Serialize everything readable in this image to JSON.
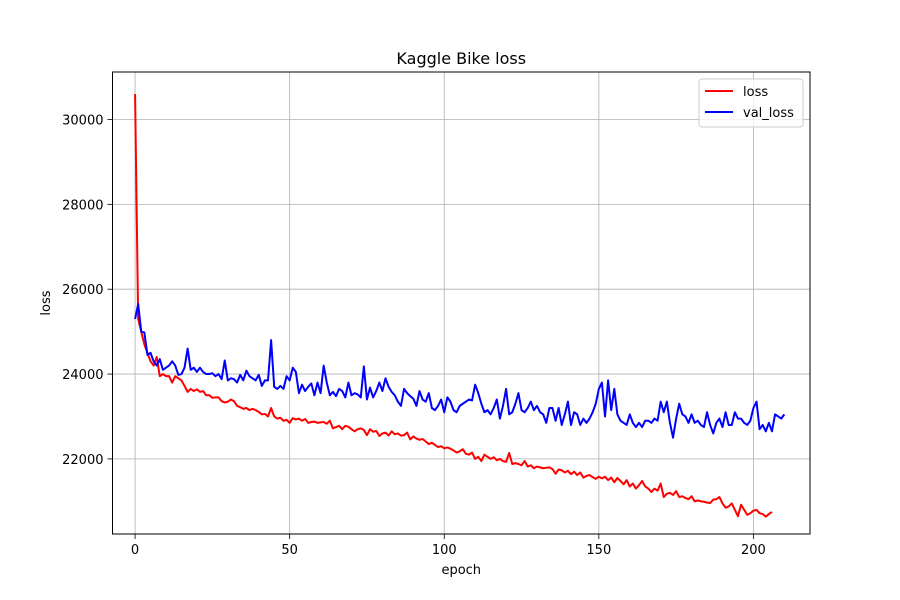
{
  "chart_data": {
    "type": "line",
    "title": "Kaggle Bike loss",
    "xlabel": "epoch",
    "ylabel": "loss",
    "xlim": [
      -7.3,
      218.3
    ],
    "ylim": [
      20230,
      31120
    ],
    "xticks": [
      0,
      50,
      100,
      150,
      200
    ],
    "yticks": [
      22000,
      24000,
      26000,
      28000,
      30000
    ],
    "grid": true,
    "legend": "top-right",
    "series": [
      {
        "name": "loss",
        "color": "#ff0000",
        "values": [
          30600,
          25300,
          25000,
          24700,
          24500,
          24300,
          24200,
          24400,
          23950,
          24000,
          23950,
          23950,
          23800,
          23950,
          23900,
          23850,
          23720,
          23580,
          23650,
          23600,
          23640,
          23580,
          23600,
          23500,
          23500,
          23440,
          23450,
          23450,
          23360,
          23330,
          23350,
          23400,
          23360,
          23250,
          23220,
          23180,
          23200,
          23150,
          23180,
          23150,
          23110,
          23050,
          23060,
          23000,
          23200,
          23000,
          22950,
          22970,
          22900,
          22920,
          22850,
          22960,
          22930,
          22950,
          22900,
          22940,
          22850,
          22870,
          22880,
          22850,
          22860,
          22870,
          22830,
          22900,
          22720,
          22750,
          22780,
          22700,
          22780,
          22760,
          22700,
          22650,
          22700,
          22720,
          22680,
          22560,
          22700,
          22640,
          22660,
          22540,
          22600,
          22620,
          22550,
          22650,
          22580,
          22600,
          22550,
          22560,
          22620,
          22460,
          22530,
          22480,
          22450,
          22470,
          22410,
          22350,
          22380,
          22330,
          22280,
          22300,
          22250,
          22270,
          22240,
          22200,
          22150,
          22180,
          22230,
          22120,
          22100,
          22150,
          22000,
          22050,
          21950,
          22100,
          22050,
          22000,
          22040,
          21970,
          22000,
          21950,
          21930,
          22140,
          21880,
          21900,
          21880,
          21850,
          21950,
          21820,
          21850,
          21780,
          21820,
          21800,
          21780,
          21790,
          21800,
          21760,
          21650,
          21750,
          21730,
          21680,
          21720,
          21640,
          21700,
          21620,
          21680,
          21560,
          21600,
          21620,
          21570,
          21530,
          21580,
          21540,
          21580,
          21500,
          21560,
          21450,
          21550,
          21480,
          21400,
          21500,
          21350,
          21420,
          21300,
          21380,
          21480,
          21350,
          21300,
          21220,
          21300,
          21250,
          21420,
          21100,
          21180,
          21200,
          21150,
          21240,
          21100,
          21120,
          21080,
          21050,
          21120,
          21000,
          21020,
          21000,
          20990,
          20970,
          20960,
          21040,
          21050,
          21100,
          20950,
          20850,
          20880,
          20950,
          20800,
          20650,
          20920,
          20800,
          20680,
          20720,
          20780,
          20800,
          20720,
          20700,
          20640,
          20700,
          20750
        ]
      },
      {
        "name": "val_loss",
        "color": "#0000ff",
        "values": [
          25300,
          25650,
          25000,
          24980,
          24450,
          24500,
          24300,
          24200,
          24350,
          24100,
          24150,
          24200,
          24300,
          24200,
          23980,
          24000,
          24150,
          24600,
          24100,
          24150,
          24050,
          24150,
          24050,
          24000,
          24000,
          24020,
          23950,
          24000,
          23880,
          24320,
          23850,
          23900,
          23880,
          23800,
          23980,
          23850,
          24080,
          23950,
          23900,
          23850,
          23980,
          23720,
          23850,
          23850,
          24800,
          23700,
          23650,
          23720,
          23650,
          23950,
          23850,
          24150,
          24050,
          23550,
          23750,
          23600,
          23700,
          23780,
          23500,
          23800,
          23550,
          24200,
          23800,
          23500,
          23580,
          23480,
          23650,
          23600,
          23450,
          23800,
          23500,
          23550,
          23520,
          23450,
          24180,
          23400,
          23680,
          23450,
          23600,
          23800,
          23600,
          23900,
          23700,
          23580,
          23500,
          23350,
          23250,
          23650,
          23550,
          23480,
          23420,
          23250,
          23600,
          23400,
          23350,
          23550,
          23200,
          23150,
          23250,
          23400,
          23100,
          23450,
          23350,
          23150,
          23100,
          23250,
          23300,
          23350,
          23400,
          23380,
          23750,
          23550,
          23300,
          23100,
          23150,
          23050,
          23200,
          23400,
          22950,
          23250,
          23650,
          23050,
          23100,
          23300,
          23550,
          23150,
          23100,
          23200,
          23350,
          23150,
          23250,
          23100,
          23050,
          22850,
          23200,
          23200,
          22900,
          23200,
          22800,
          23050,
          23350,
          22800,
          23100,
          23050,
          22800,
          22950,
          22850,
          22950,
          23100,
          23300,
          23650,
          23800,
          23000,
          23850,
          23150,
          23650,
          23050,
          22900,
          22850,
          22800,
          23050,
          22850,
          22750,
          22850,
          22750,
          22900,
          22900,
          22850,
          22950,
          22900,
          23350,
          23100,
          23350,
          22850,
          22500,
          22950,
          23300,
          23050,
          23000,
          22850,
          23050,
          22850,
          22900,
          22800,
          22750,
          23100,
          22800,
          22600,
          22850,
          22950,
          22750,
          23100,
          22800,
          22800,
          23100,
          22950,
          22950,
          22850,
          22800,
          22900,
          23200,
          23350,
          22700,
          22800,
          22650,
          22850,
          22650,
          23050,
          23000,
          22950,
          23050
        ]
      }
    ]
  }
}
